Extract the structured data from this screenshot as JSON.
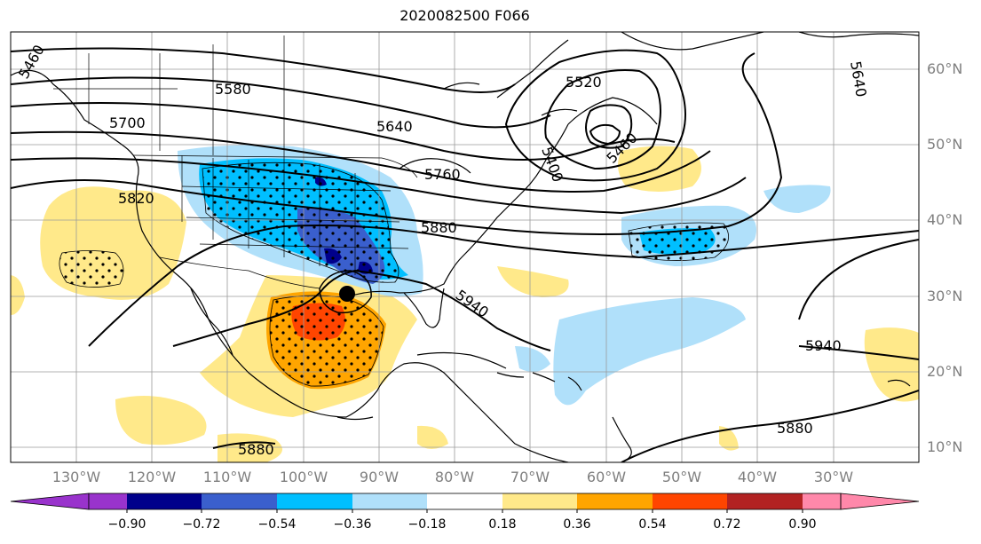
{
  "title": "2020082500 F066",
  "map": {
    "lat_labels": [
      "60°N",
      "50°N",
      "40°N",
      "30°N",
      "20°N",
      "10°N"
    ],
    "lon_labels": [
      "130°W",
      "120°W",
      "110°W",
      "100°W",
      "90°W",
      "80°W",
      "70°W",
      "60°W",
      "50°W",
      "40°W",
      "30°W"
    ],
    "contour_labels": [
      "5520",
      "5580",
      "5640",
      "5640",
      "5700",
      "5760",
      "5820",
      "5880",
      "5940",
      "5940",
      "5880",
      "5880",
      "5400",
      "5460",
      "5460"
    ],
    "hurricane_marker": "storm-center"
  },
  "colorbar": {
    "ticks": [
      "−0.90",
      "−0.72",
      "−0.54",
      "−0.36",
      "−0.18",
      "0.18",
      "0.36",
      "0.54",
      "0.72",
      "0.90"
    ],
    "colors": [
      "#9933cc",
      "#00008b",
      "#3a5fcd",
      "#00bfff",
      "#b0e0fa",
      "#ffffff",
      "#ffe98a",
      "#ffa500",
      "#ff4500",
      "#b22222",
      "#ff88aa"
    ]
  }
}
